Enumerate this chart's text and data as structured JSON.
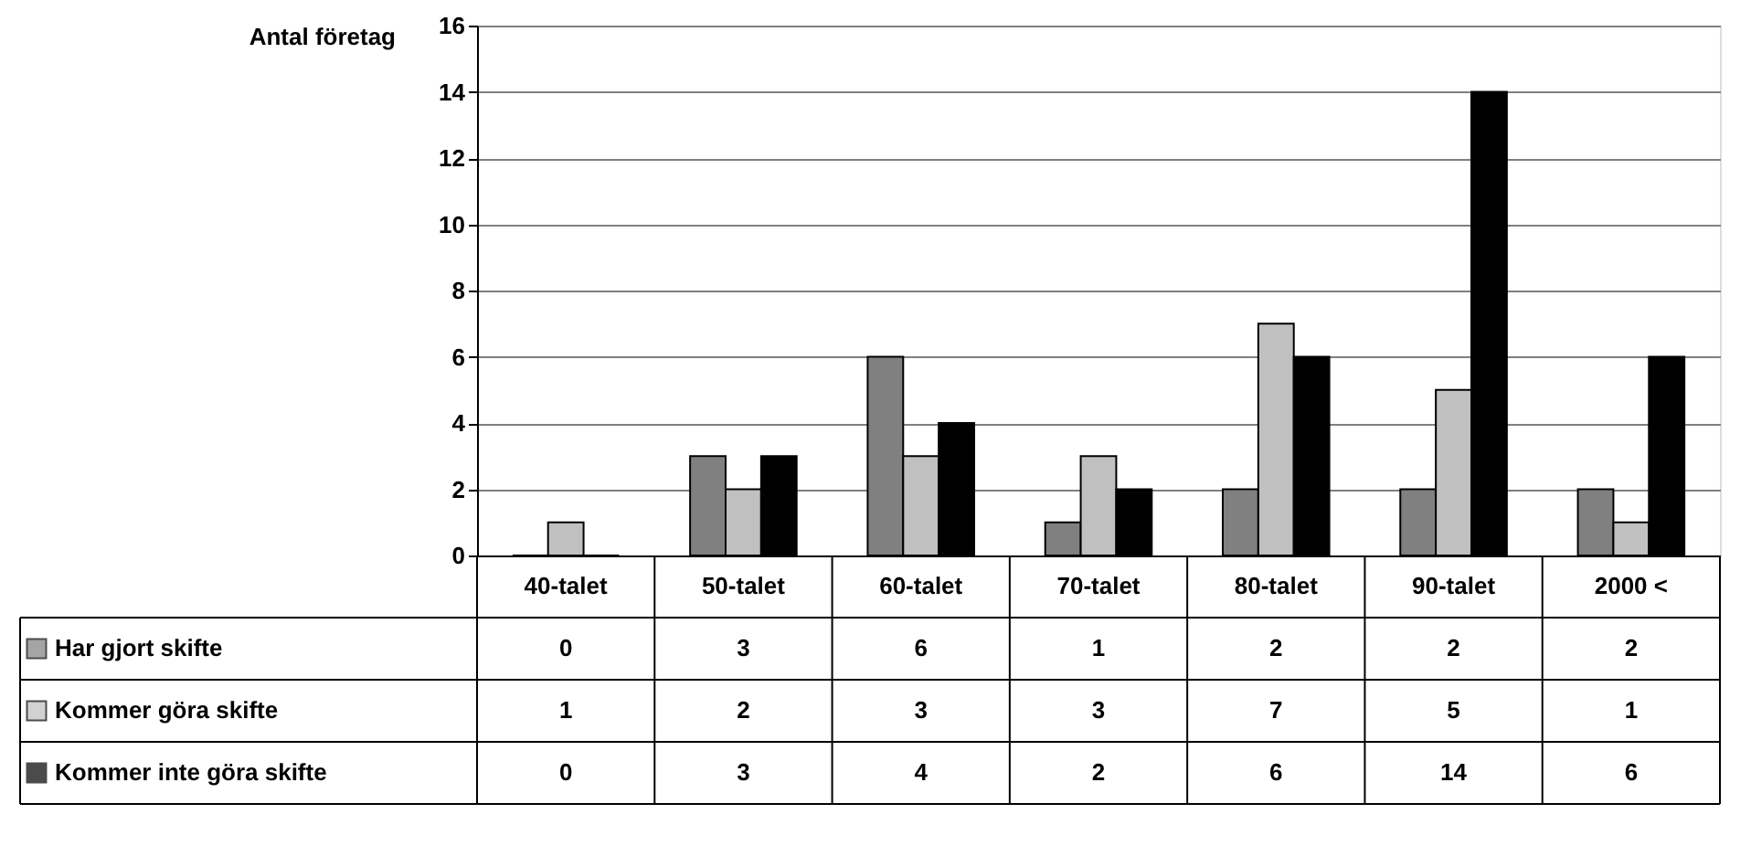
{
  "chart_data": {
    "type": "bar",
    "ylabel": "Antal företag",
    "categories": [
      "40-talet",
      "50-talet",
      "60-talet",
      "70-talet",
      "80-talet",
      "90-talet",
      "2000 <"
    ],
    "series": [
      {
        "name": "Har gjort skifte",
        "color": "#808080",
        "values": [
          0,
          3,
          6,
          1,
          2,
          2,
          2
        ]
      },
      {
        "name": "Kommer göra skifte",
        "color": "#c0c0c0",
        "values": [
          1,
          2,
          3,
          3,
          7,
          5,
          1
        ]
      },
      {
        "name": "Kommer inte göra skifte",
        "color": "#000000",
        "values": [
          0,
          3,
          4,
          2,
          6,
          14,
          6
        ]
      }
    ],
    "ylim": [
      0,
      16
    ],
    "yticks": [
      0,
      2,
      4,
      6,
      8,
      10,
      12,
      14,
      16
    ],
    "grid": "y",
    "data_labels": true,
    "legend": "bottom"
  }
}
